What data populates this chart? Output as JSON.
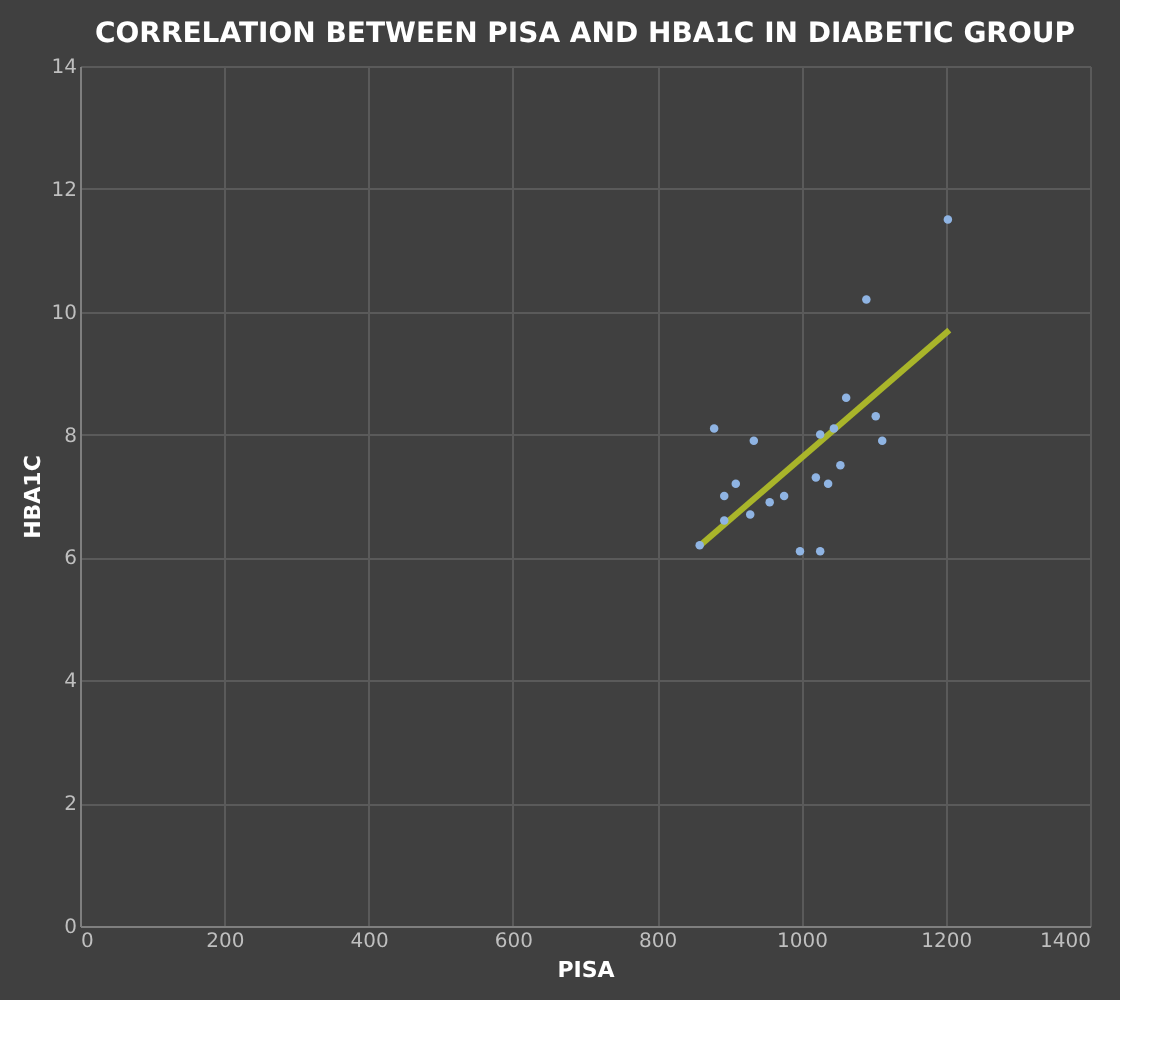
{
  "chart_data": {
    "type": "scatter",
    "title": "CORRELATION BETWEEN PISA AND HBA1C IN DIABETIC GROUP",
    "xlabel": "PISA",
    "ylabel": "HBA1C",
    "xlim": [
      0,
      1400
    ],
    "xticks": [
      0,
      200,
      400,
      600,
      800,
      1000,
      1200,
      1400
    ],
    "ylim": [
      0,
      14
    ],
    "yticks": [
      0,
      2,
      4,
      6,
      8,
      10,
      12,
      14
    ],
    "grid": true,
    "series": [
      {
        "marker": "circle",
        "color": "#8fb4e3",
        "x": [
          859,
          879,
          893,
          909,
          893,
          934,
          929,
          956,
          976,
          998,
          1026,
          1020,
          1026,
          1037,
          1045,
          1054,
          1062,
          1090,
          1103,
          1112,
          1203
        ],
        "values": [
          6.2,
          8.1,
          7.0,
          7.2,
          6.6,
          7.9,
          6.7,
          6.9,
          7.0,
          6.1,
          6.1,
          7.3,
          8.0,
          7.2,
          8.1,
          7.5,
          8.6,
          10.2,
          8.3,
          7.9,
          11.5
        ]
      },
      {
        "type": "line",
        "color": "#a9b52a",
        "x": [
          860,
          1205
        ],
        "values": [
          6.2,
          9.7
        ]
      }
    ]
  }
}
